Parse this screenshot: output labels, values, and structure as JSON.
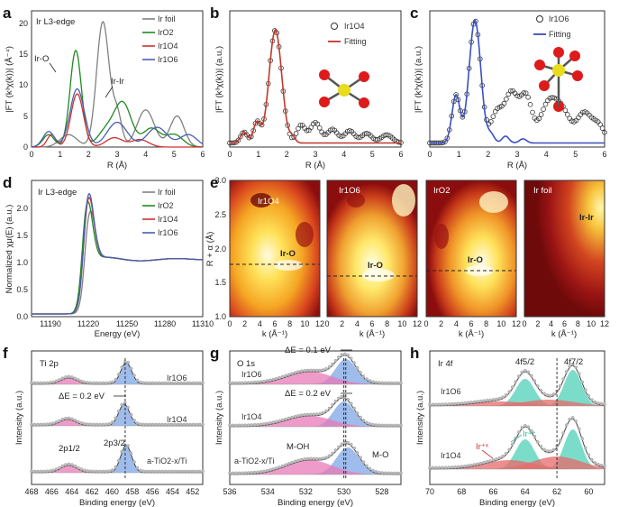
{
  "figure": {
    "panel_letters": [
      "a",
      "b",
      "c",
      "d",
      "e",
      "f",
      "g",
      "h"
    ],
    "colors": {
      "ir_foil": "#808080",
      "iro2": "#1f8a1f",
      "ir1o4": "#d03030",
      "ir1o6": "#4a5fb0",
      "fit_red": "#c0392b",
      "fit_blue": "#3a4fc0",
      "xps_pink": "#e87ab8",
      "xps_blue": "#7ea6e6",
      "xps_teal": "#4fd0b8",
      "xps_red": "#e86a6a"
    }
  },
  "chart_data": [
    {
      "id": "a",
      "type": "line",
      "title": "Ir L3-edge",
      "xlabel": "R (Å)",
      "ylabel": "|FT (k³χ(k))| (Å⁻⁴)",
      "xlim": [
        0,
        6
      ],
      "ylim": [
        0,
        22
      ],
      "xticks": [
        "0",
        "1",
        "2",
        "3",
        "4",
        "5",
        "6"
      ],
      "yticks": [
        "0",
        "5",
        "10",
        "15",
        "20"
      ],
      "legend": [
        "Ir foil",
        "IrO2",
        "Ir1O4",
        "Ir1O6"
      ],
      "annotations": [
        "Ir-O",
        "Ir-Ir"
      ],
      "series": [
        {
          "name": "Ir foil",
          "peaks": [
            [
              2.5,
              20.2,
              0.22
            ],
            [
              3.0,
              5.2,
              0.16
            ],
            [
              4.0,
              6.0,
              0.3
            ],
            [
              5.1,
              5.0,
              0.25
            ],
            [
              1.3,
              2.0,
              0.3
            ]
          ]
        },
        {
          "name": "IrO2",
          "peaks": [
            [
              1.55,
              15.6,
              0.2
            ],
            [
              3.2,
              7.0,
              0.3
            ],
            [
              2.6,
              2.5,
              0.3
            ],
            [
              4.2,
              3.0,
              0.3
            ],
            [
              0.6,
              2.0,
              0.2
            ],
            [
              5.0,
              2.0,
              0.3
            ]
          ]
        },
        {
          "name": "Ir1O4",
          "peaks": [
            [
              1.6,
              8.6,
              0.22
            ],
            [
              0.7,
              2.0,
              0.15
            ],
            [
              2.9,
              1.5,
              0.3
            ],
            [
              3.8,
              1.2,
              0.3
            ]
          ]
        },
        {
          "name": "Ir1O6",
          "peaks": [
            [
              1.6,
              9.4,
              0.25
            ],
            [
              3.0,
              4.0,
              0.35
            ],
            [
              4.4,
              3.2,
              0.35
            ],
            [
              5.5,
              2.0,
              0.3
            ],
            [
              0.6,
              2.5,
              0.2
            ]
          ]
        }
      ]
    },
    {
      "id": "b",
      "type": "line",
      "xlabel": "R (Å)",
      "ylabel": "|FT (k³χ(k))| (a.u.)",
      "xlim": [
        0,
        6
      ],
      "ylim": [
        0,
        10
      ],
      "xticks": [
        "0",
        "1",
        "2",
        "3",
        "4",
        "5",
        "6"
      ],
      "legend": [
        "Ir1O4",
        "Fitting"
      ],
      "series": [
        {
          "name": "Ir1O4 data",
          "peaks": [
            [
              1.6,
              8.3,
              0.22
            ],
            [
              0.95,
              1.5,
              0.12
            ],
            [
              0.5,
              0.8,
              0.12
            ],
            [
              2.5,
              1.3,
              0.15
            ],
            [
              3.0,
              1.5,
              0.18
            ],
            [
              3.6,
              1.0,
              0.18
            ],
            [
              4.2,
              0.9,
              0.18
            ],
            [
              4.8,
              0.7,
              0.18
            ],
            [
              5.5,
              0.6,
              0.2
            ]
          ]
        },
        {
          "name": "Fitting",
          "peaks": [
            [
              1.6,
              8.3,
              0.22
            ],
            [
              0.95,
              1.5,
              0.12
            ],
            [
              0.5,
              0.8,
              0.12
            ],
            [
              2.2,
              0.4,
              0.1
            ]
          ]
        }
      ]
    },
    {
      "id": "c",
      "type": "line",
      "xlabel": "R (Å)",
      "ylabel": "|FT (k³χ(k))| (a.u.)",
      "xlim": [
        0,
        6
      ],
      "ylim": [
        0,
        10
      ],
      "xticks": [
        "0",
        "1",
        "2",
        "3",
        "4",
        "5",
        "6"
      ],
      "legend": [
        "Ir1O6",
        "Fitting"
      ],
      "series": [
        {
          "name": "Ir1O6 data",
          "peaks": [
            [
              1.55,
              9.0,
              0.2
            ],
            [
              0.9,
              3.5,
              0.14
            ],
            [
              2.3,
              2.2,
              0.2
            ],
            [
              2.8,
              3.6,
              0.22
            ],
            [
              3.3,
              3.3,
              0.2
            ],
            [
              4.1,
              3.0,
              0.3
            ],
            [
              4.6,
              1.8,
              0.25
            ],
            [
              5.3,
              2.2,
              0.25
            ],
            [
              5.8,
              1.2,
              0.2
            ]
          ]
        },
        {
          "name": "Fitting",
          "peaks": [
            [
              1.55,
              9.0,
              0.2
            ],
            [
              0.9,
              3.5,
              0.14
            ],
            [
              2.1,
              0.6,
              0.12
            ],
            [
              2.6,
              0.5,
              0.12
            ],
            [
              3.2,
              0.3,
              0.12
            ]
          ]
        }
      ]
    },
    {
      "id": "d",
      "type": "line",
      "title": "Ir L3-edge",
      "xlabel": "Energy (eV)",
      "ylabel": "Normalized χμ(E) (a.u.)",
      "xlim": [
        11175,
        11310
      ],
      "ylim": [
        0,
        2.5
      ],
      "xticks": [
        "11190",
        "11220",
        "11250",
        "11280",
        "11310"
      ],
      "yticks": [
        "0.0",
        "0.5",
        "1.0",
        "1.5",
        "2.0"
      ],
      "legend": [
        "Ir foil",
        "IrO2",
        "Ir1O4",
        "Ir1O6"
      ],
      "series": [
        {
          "name": "Ir foil",
          "peak_height": 1.95,
          "peak_pos": 11221
        },
        {
          "name": "IrO2",
          "peak_height": 2.12,
          "peak_pos": 11219
        },
        {
          "name": "Ir1O4",
          "peak_height": 2.2,
          "peak_pos": 11220
        },
        {
          "name": "Ir1O6",
          "peak_height": 2.27,
          "peak_pos": 11220
        }
      ]
    },
    {
      "id": "e",
      "type": "heatmap",
      "ylabel": "R + α (Å)",
      "xlabel": "k (Å⁻¹)",
      "ylim": [
        1.0,
        3.0
      ],
      "xticks": [
        "0",
        "2",
        "4",
        "6",
        "8",
        "10",
        "12"
      ],
      "yticks": [
        "1.0",
        "1.5",
        "2.0",
        "2.5",
        "3.0"
      ],
      "maps": [
        {
          "name": "Ir1O4",
          "feature": "Ir-O"
        },
        {
          "name": "Ir1O6",
          "feature": "Ir-O"
        },
        {
          "name": "IrO2",
          "feature": "Ir-O"
        },
        {
          "name": "Ir foil",
          "feature": "Ir-Ir"
        }
      ]
    },
    {
      "id": "f",
      "type": "area",
      "title": "Ti 2p",
      "xlabel": "Binding energy (eV)",
      "ylabel": "Intensity (a.u.)",
      "xlim": [
        468,
        451
      ],
      "xticks": [
        "468",
        "466",
        "464",
        "462",
        "460",
        "458",
        "456",
        "454",
        "452"
      ],
      "samples": [
        "Ir1O6",
        "Ir1O4",
        "a-TiO2-x/Ti"
      ],
      "annotations": [
        "ΔE = 0.2 eV",
        "2p1/2",
        "2p3/2"
      ],
      "peaks": [
        {
          "name": "2p3/2",
          "center": 458.6
        },
        {
          "name": "2p1/2",
          "center": 464.3
        }
      ]
    },
    {
      "id": "g",
      "type": "area",
      "title": "O 1s",
      "xlabel": "Binding energy (eV)",
      "ylabel": "Intensity (a.u.)",
      "xlim": [
        536,
        527
      ],
      "xticks": [
        "536",
        "534",
        "532",
        "530",
        "528"
      ],
      "samples": [
        "Ir1O6",
        "Ir1O4",
        "a-TiO2-x/Ti"
      ],
      "annotations": [
        "ΔE = 0.1 eV",
        "ΔE = 0.2 eV",
        "M-OH",
        "M-O"
      ],
      "peaks": [
        {
          "name": "M-O",
          "center": 529.9
        },
        {
          "name": "M-OH",
          "center": 531.8
        }
      ]
    },
    {
      "id": "h",
      "type": "area",
      "title": "Ir 4f",
      "xlabel": "Binding energy (eV)",
      "ylabel": "Intensity (a.u.)",
      "xlim": [
        70,
        59
      ],
      "xticks": [
        "70",
        "68",
        "66",
        "64",
        "62",
        "60"
      ],
      "samples": [
        "Ir1O6",
        "Ir1O4"
      ],
      "annotations": [
        "4f5/2",
        "4f7/2",
        "Ir⁴⁺",
        "Ir⁺ˣ"
      ],
      "peaks": [
        {
          "name": "4f7/2",
          "center": 61.0
        },
        {
          "name": "4f5/2",
          "center": 64.0
        }
      ]
    }
  ]
}
